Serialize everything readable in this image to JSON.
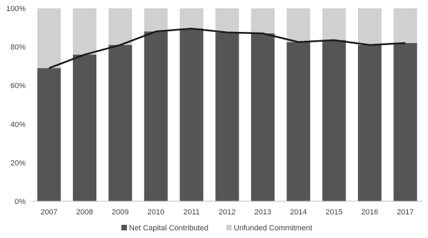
{
  "chart_data": {
    "type": "bar",
    "stacked": true,
    "percent_stacked": true,
    "categories": [
      "2007",
      "2008",
      "2009",
      "2010",
      "2011",
      "2012",
      "2013",
      "2014",
      "2015",
      "2016",
      "2017"
    ],
    "series": [
      {
        "name": "Net Capital Contributed",
        "type": "bar",
        "color": "#555555",
        "values": [
          69,
          76,
          81,
          88,
          89.5,
          87.5,
          87,
          82.5,
          83.5,
          81,
          82
        ]
      },
      {
        "name": "Unfunded Commitment",
        "type": "bar",
        "color": "#d0d0d0",
        "values": [
          31,
          24,
          19,
          12,
          10.5,
          12.5,
          13,
          17.5,
          16.5,
          19,
          18
        ]
      },
      {
        "type": "line",
        "color": "#1a1a1a",
        "values": [
          69,
          76,
          81,
          88,
          89.5,
          87.5,
          87,
          82.5,
          83.5,
          81,
          82
        ]
      }
    ],
    "y_ticks": [
      "0%",
      "20%",
      "40%",
      "60%",
      "80%",
      "100%"
    ],
    "ylim": [
      0,
      100
    ],
    "grid": false,
    "legend_position": "bottom"
  }
}
